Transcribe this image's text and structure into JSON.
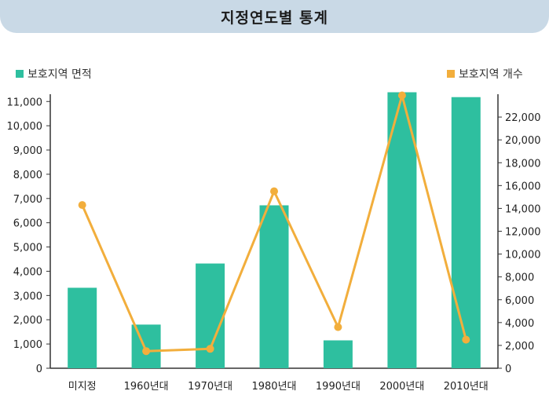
{
  "header": {
    "title": "지정연도별 통계"
  },
  "colors": {
    "bar": "#2ebf9f",
    "line": "#f2ae3c",
    "header_bg": "#c9d9e6"
  },
  "chart_data": {
    "type": "bar",
    "title": "지정연도별 통계",
    "categories": [
      "미지정",
      "1960년대",
      "1970년대",
      "1980년대",
      "1990년대",
      "2000년대",
      "2010년대"
    ],
    "series": [
      {
        "name": "보호지역 면적",
        "type": "bar",
        "axis": "left",
        "values": [
          3320,
          1800,
          4320,
          6720,
          1150,
          11380,
          11180
        ]
      },
      {
        "name": "보호지역 개수",
        "type": "line",
        "axis": "right",
        "values": [
          14300,
          1500,
          1700,
          15500,
          3600,
          23900,
          2500
        ]
      }
    ],
    "y_left": {
      "ylim": [
        0,
        11300
      ],
      "ticks": [
        0,
        1000,
        2000,
        3000,
        4000,
        5000,
        6000,
        7000,
        8000,
        9000,
        10000,
        11000
      ],
      "tick_labels": [
        "0",
        "1,000",
        "2,000",
        "3,000",
        "4,000",
        "5,000",
        "6,000",
        "7,000",
        "8,000",
        "9,000",
        "10,000",
        "11,000"
      ]
    },
    "y_right": {
      "ylim": [
        0,
        24000
      ],
      "ticks": [
        0,
        2000,
        4000,
        6000,
        8000,
        10000,
        12000,
        14000,
        16000,
        18000,
        20000,
        22000
      ],
      "tick_labels": [
        "0",
        "2,000",
        "4,000",
        "6,000",
        "8,000",
        "10,000",
        "12,000",
        "14,000",
        "16,000",
        "18,000",
        "20,000",
        "22,000"
      ]
    },
    "legend": {
      "left": "보호지역 면적",
      "right": "보호지역 개수",
      "placement": "top"
    },
    "grid": false
  }
}
